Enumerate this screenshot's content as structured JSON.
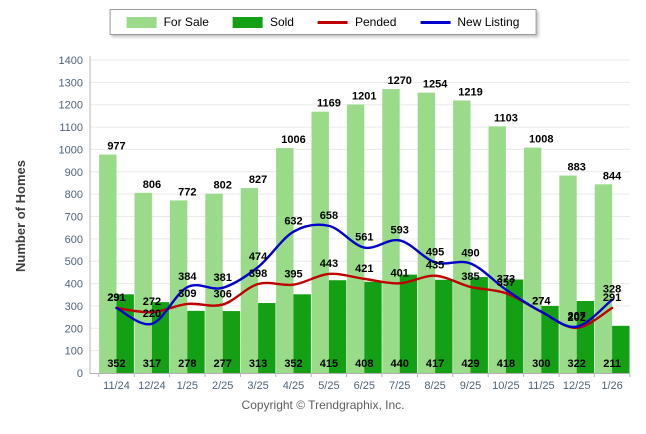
{
  "legend": {
    "items": [
      {
        "label": "For Sale",
        "swatch": "bar",
        "color": "#9ADB8A"
      },
      {
        "label": "Sold",
        "swatch": "bar",
        "color": "#14A014"
      },
      {
        "label": "Pended",
        "swatch": "line",
        "color": "#C00000"
      },
      {
        "label": "New Listing",
        "swatch": "line",
        "color": "#0000CC"
      }
    ]
  },
  "chart_data": {
    "type": "bar",
    "categories": [
      "11/24",
      "12/24",
      "1/25",
      "2/25",
      "3/25",
      "4/25",
      "5/25",
      "6/25",
      "7/25",
      "8/25",
      "9/25",
      "10/25",
      "11/25",
      "12/25",
      "1/26"
    ],
    "series": [
      {
        "name": "For Sale",
        "type": "bar",
        "color": "#9ADB8A",
        "values": [
          977,
          806,
          772,
          802,
          827,
          1006,
          1169,
          1201,
          1270,
          1254,
          1219,
          1103,
          1008,
          883,
          844
        ]
      },
      {
        "name": "Sold",
        "type": "bar",
        "color": "#14A014",
        "values": [
          352,
          317,
          278,
          277,
          313,
          352,
          415,
          408,
          440,
          417,
          429,
          418,
          300,
          322,
          211
        ]
      },
      {
        "name": "Pended",
        "type": "line",
        "color": "#C00000",
        "values": [
          291,
          272,
          309,
          306,
          398,
          395,
          443,
          421,
          401,
          435,
          385,
          357,
          274,
          202,
          291
        ]
      },
      {
        "name": "New Listing",
        "type": "line",
        "color": "#0000CC",
        "values": [
          291,
          220,
          384,
          381,
          474,
          632,
          658,
          561,
          593,
          495,
          490,
          373,
          274,
          207,
          328
        ]
      }
    ],
    "ylabel": "Number of Homes",
    "xlabel": "",
    "ylim": [
      0,
      1400
    ],
    "ytick_step": 100,
    "grid": true,
    "legend_position": "top"
  },
  "colors": {
    "grid": "#EAEAEA",
    "axis": "#B3B3B3",
    "tick_text": "#4E6377",
    "value_label": "#000000"
  },
  "footer": {
    "copyright": "Copyright © Trendgraphix, Inc."
  }
}
